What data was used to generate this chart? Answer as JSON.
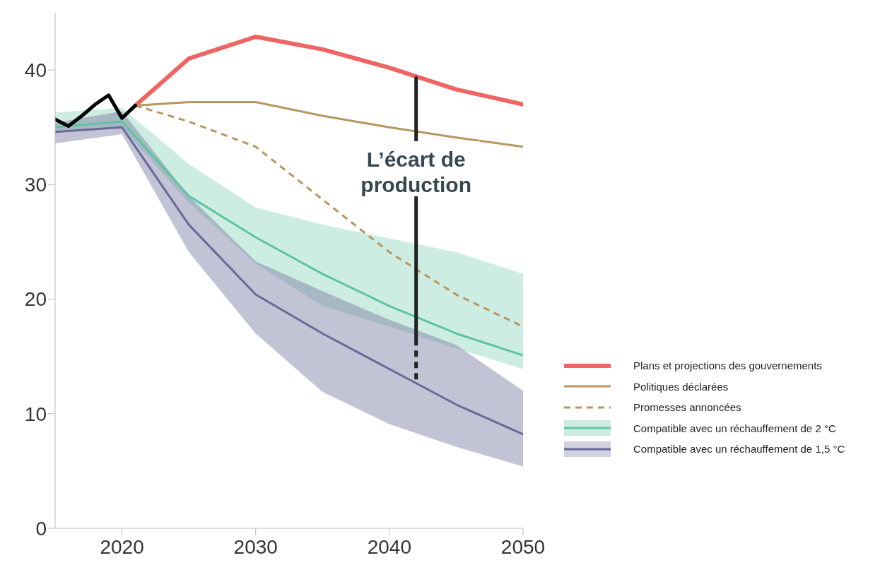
{
  "chart_data": {
    "type": "line",
    "xlim": [
      2015,
      2050
    ],
    "ylim": [
      0,
      45
    ],
    "xticks": [
      2020,
      2030,
      2040,
      2050
    ],
    "yticks": [
      0,
      10,
      20,
      30,
      40
    ],
    "grid": false,
    "legend": "right",
    "line_style": "solid",
    "marker": "none",
    "series": [
      {
        "name": "Plans et projections des gouvernements",
        "color": "#f06464",
        "x": [
          2021,
          2025,
          2030,
          2035,
          2040,
          2045,
          2050
        ],
        "values": [
          36.9,
          41.0,
          42.9,
          41.8,
          40.2,
          38.3,
          37.0
        ]
      },
      {
        "name": "Politiques déclarées",
        "color": "#b8965f",
        "x": [
          2021,
          2025,
          2030,
          2035,
          2040,
          2045,
          2050
        ],
        "values": [
          36.9,
          37.2,
          37.2,
          36.0,
          35.0,
          34.1,
          33.3
        ]
      },
      {
        "name": "Promesses annoncées",
        "color": "#b8965f",
        "line_style": "dashed",
        "x": [
          2021,
          2025,
          2030,
          2035,
          2040,
          2045,
          2050
        ],
        "values": [
          36.9,
          35.5,
          33.3,
          28.7,
          24.1,
          20.4,
          17.6
        ]
      },
      {
        "name": "Compatible avec un réchauffement de 2 °C",
        "color": "#5cc4a0",
        "x": [
          2015,
          2020,
          2025,
          2030,
          2035,
          2040,
          2045,
          2050
        ],
        "values": [
          35.0,
          35.5,
          29.0,
          25.4,
          22.2,
          19.4,
          17.0,
          15.1
        ],
        "lower": [
          34.5,
          35.0,
          28.4,
          23.1,
          19.4,
          17.6,
          15.7,
          13.9
        ],
        "upper": [
          36.3,
          36.7,
          31.8,
          28.0,
          26.5,
          25.3,
          24.1,
          22.2
        ]
      },
      {
        "name": "Compatible avec un réchauffement de 1,5 °C",
        "color": "#6a6898",
        "x": [
          2015,
          2020,
          2025,
          2030,
          2035,
          2040,
          2045,
          2050
        ],
        "values": [
          34.6,
          35.0,
          26.5,
          20.4,
          17.0,
          13.9,
          10.8,
          8.2
        ],
        "lower": [
          33.6,
          34.4,
          24.1,
          17.0,
          11.9,
          9.1,
          7.1,
          5.4
        ],
        "upper": [
          35.4,
          36.4,
          29.0,
          23.3,
          20.7,
          18.2,
          16.0,
          12.0
        ]
      },
      {
        "color": "#000000",
        "x": [
          2015,
          2016,
          2017,
          2018,
          2019,
          2020,
          2021
        ],
        "values": [
          35.7,
          35.1,
          36.0,
          37.0,
          37.8,
          35.8,
          36.9
        ]
      },
      {
        "color": "#222222",
        "x": [
          2042,
          2042
        ],
        "values": [
          39.3,
          16.5
        ]
      },
      {
        "color": "#222222",
        "line_style": "dashed",
        "x": [
          2042,
          2042
        ],
        "values": [
          16.5,
          12.7
        ]
      }
    ],
    "annotations": [
      "L’écart de production"
    ]
  }
}
